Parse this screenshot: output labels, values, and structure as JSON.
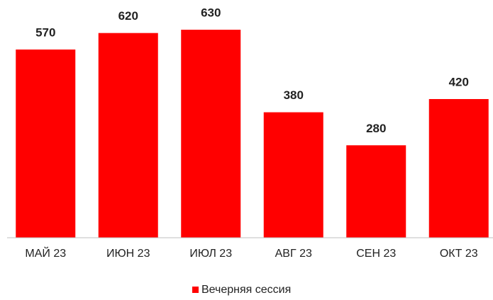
{
  "chart_data": {
    "type": "bar",
    "categories": [
      "МАЙ 23",
      "ИЮН 23",
      "ИЮЛ 23",
      "АВГ 23",
      "СЕН 23",
      "ОКТ 23"
    ],
    "series": [
      {
        "name": "Вечерняя сессия",
        "color": "#ff0000",
        "values": [
          570,
          620,
          630,
          380,
          280,
          420
        ]
      }
    ],
    "ylim": [
      0,
      700
    ],
    "legend": "bottom"
  }
}
